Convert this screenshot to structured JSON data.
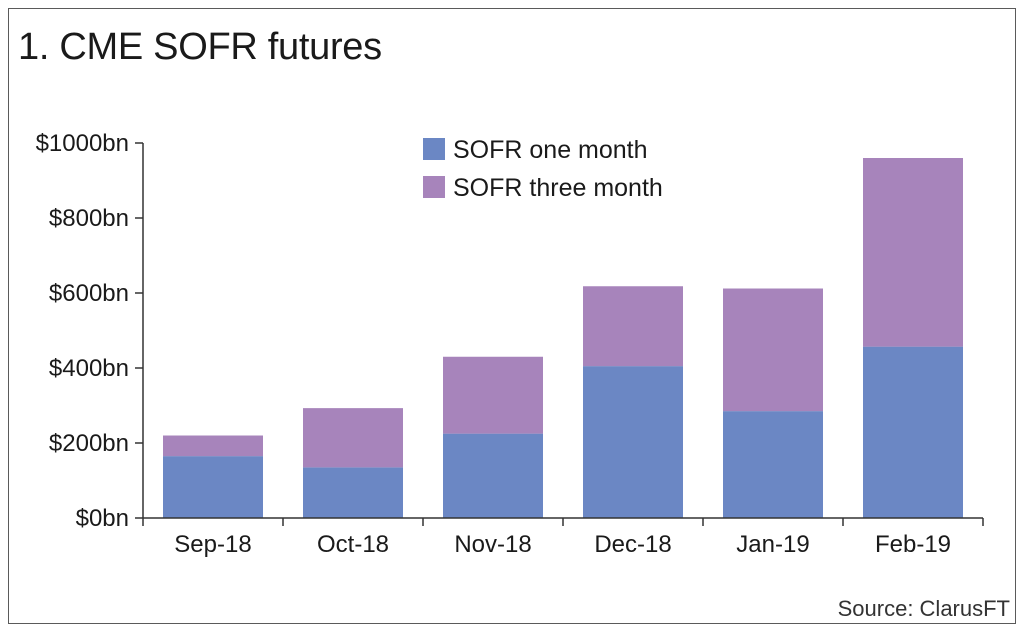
{
  "chart_data": {
    "type": "bar",
    "stacked": true,
    "title": "1. CME SOFR futures",
    "source": "Source: ClarusFT",
    "categories": [
      "Sep-18",
      "Oct-18",
      "Nov-18",
      "Dec-18",
      "Jan-19",
      "Feb-19"
    ],
    "series": [
      {
        "name": "SOFR one month",
        "color": "#6b87c4",
        "values": [
          165,
          135,
          225,
          405,
          285,
          457
        ]
      },
      {
        "name": "SOFR three month",
        "color": "#a784bb",
        "values": [
          55,
          158,
          205,
          213,
          327,
          503
        ]
      }
    ],
    "ylim": [
      0,
      1000
    ],
    "yticks": [
      0,
      200,
      400,
      600,
      800,
      1000
    ],
    "ytick_labels": [
      "$0bn",
      "$200bn",
      "$400bn",
      "$600bn",
      "$800bn",
      "$1000bn"
    ],
    "xlabel": "",
    "ylabel": "",
    "grid": false,
    "legend_position": "top-center"
  }
}
